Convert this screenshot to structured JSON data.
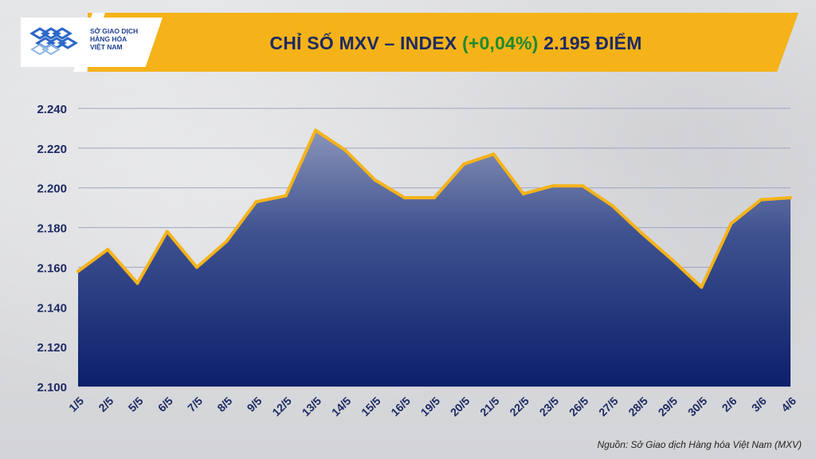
{
  "header": {
    "title_prefix": "CHỈ SỐ MXV – INDEX",
    "title_change": "(+0,04%)",
    "title_value": "2.195 ĐIỂM",
    "brand_color": "#f5b319",
    "change_color": "#1d8a2f"
  },
  "logo": {
    "line1": "SỞ GIAO DỊCH",
    "line2": "HÀNG HÓA",
    "line3": "VIỆT NAM"
  },
  "source": "Nguồn: Sở Giao dịch Hàng hóa Việt Nam (MXV)",
  "chart_data": {
    "type": "area",
    "title": "CHỈ SỐ MXV – INDEX (+0,04%) 2.195 ĐIỂM",
    "xlabel": "",
    "ylabel": "",
    "categories": [
      "1/5",
      "2/5",
      "5/5",
      "6/5",
      "7/5",
      "8/5",
      "9/5",
      "12/5",
      "13/5",
      "14/5",
      "15/5",
      "16/5",
      "19/5",
      "20/5",
      "21/5",
      "22/5",
      "23/5",
      "26/5",
      "27/5",
      "28/5",
      "29/5",
      "30/5",
      "2/6",
      "3/6",
      "4/6"
    ],
    "values": [
      2158,
      2169,
      2152,
      2178,
      2160,
      2173,
      2193,
      2196,
      2229,
      2219,
      2204,
      2195,
      2195,
      2212,
      2217,
      2197,
      2201,
      2201,
      2191,
      2177,
      2164,
      2150,
      2182,
      2194,
      2195
    ],
    "ylim": [
      2100,
      2240
    ],
    "yticks": [
      2100,
      2120,
      2140,
      2160,
      2180,
      2200,
      2220,
      2240
    ],
    "ytick_labels": [
      "2.100",
      "2.120",
      "2.140",
      "2.160",
      "2.180",
      "2.200",
      "2.220",
      "2.240"
    ],
    "grid": true,
    "line_color": "#f5b31a",
    "fill_top_color": "#8a94b8",
    "fill_bottom_color": "#0c1f6b"
  }
}
